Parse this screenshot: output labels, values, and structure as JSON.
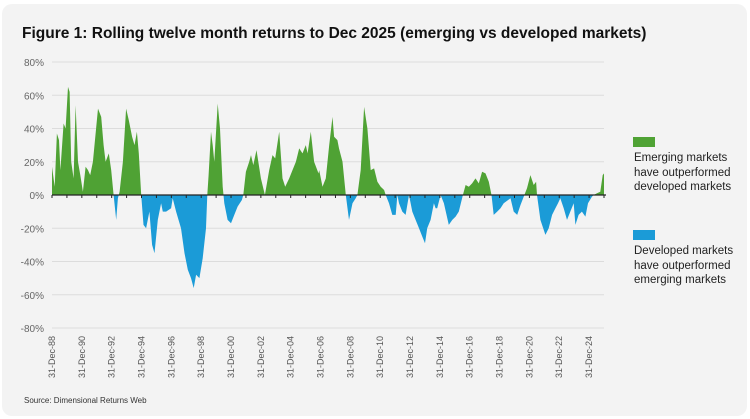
{
  "chart_data": {
    "type": "area",
    "title": "Figure 1: Rolling twelve month returns to Dec 2025 (emerging vs developed markets)",
    "xlabel": "",
    "ylabel": "",
    "ylim": [
      -80,
      80
    ],
    "xlim": [
      1988.95,
      2025.95
    ],
    "y_ticks": [
      "80%",
      "60%",
      "40%",
      "20%",
      "0%",
      "-20%",
      "-40%",
      "-60%",
      "-80%"
    ],
    "y_tick_values": [
      80,
      60,
      40,
      20,
      0,
      -20,
      -40,
      -60,
      -80
    ],
    "x_ticks": [
      "31-Dec-88",
      "31-Dec-90",
      "31-Dec-92",
      "31-Dec-94",
      "31-Dec-96",
      "31-Dec-98",
      "31-Dec-00",
      "31-Dec-02",
      "31-Dec-04",
      "31-Dec-06",
      "31-Dec-08",
      "31-Dec-10",
      "31-Dec-12",
      "31-Dec-14",
      "31-Dec-16",
      "31-Dec-18",
      "31-Dec-20",
      "31-Dec-22",
      "31-Dec-24"
    ],
    "grid": true,
    "legend_position": "right",
    "colors": {
      "positive": "#4fa234",
      "negative": "#1b9bd7"
    },
    "legend": [
      {
        "label": "Emerging markets have outperformed developed markets",
        "color": "#4fa234"
      },
      {
        "label": "Developed markets have outperformed emerging markets",
        "color": "#1b9bd7"
      }
    ],
    "x_unit": "year (decimal)",
    "points": [
      [
        1988.95,
        17
      ],
      [
        1989.13,
        5
      ],
      [
        1989.28,
        37
      ],
      [
        1989.42,
        33
      ],
      [
        1989.51,
        15
      ],
      [
        1989.73,
        43
      ],
      [
        1989.86,
        40
      ],
      [
        1990.02,
        65
      ],
      [
        1990.13,
        62
      ],
      [
        1990.24,
        20
      ],
      [
        1990.4,
        10
      ],
      [
        1990.53,
        54
      ],
      [
        1990.69,
        20
      ],
      [
        1990.85,
        12
      ],
      [
        1991.02,
        2
      ],
      [
        1991.2,
        17
      ],
      [
        1991.36,
        15
      ],
      [
        1991.51,
        12
      ],
      [
        1991.69,
        20
      ],
      [
        1992.03,
        52
      ],
      [
        1992.25,
        47
      ],
      [
        1992.41,
        30
      ],
      [
        1992.54,
        20
      ],
      [
        1992.76,
        25
      ],
      [
        1992.92,
        15
      ],
      [
        1993.08,
        0
      ],
      [
        1993.25,
        -15
      ],
      [
        1993.37,
        -2
      ],
      [
        1993.48,
        2
      ],
      [
        1993.7,
        20
      ],
      [
        1993.92,
        52
      ],
      [
        1994.1,
        45
      ],
      [
        1994.32,
        35
      ],
      [
        1994.48,
        30
      ],
      [
        1994.64,
        38
      ],
      [
        1994.77,
        25
      ],
      [
        1994.93,
        0
      ],
      [
        1995.08,
        -18
      ],
      [
        1995.26,
        -20
      ],
      [
        1995.48,
        -10
      ],
      [
        1995.66,
        -30
      ],
      [
        1995.82,
        -35
      ],
      [
        1996.04,
        -15
      ],
      [
        1996.26,
        -5
      ],
      [
        1996.38,
        -10
      ],
      [
        1996.6,
        -10
      ],
      [
        1996.93,
        -8
      ],
      [
        1997.04,
        -2
      ],
      [
        1997.27,
        -10
      ],
      [
        1997.6,
        -20
      ],
      [
        1997.83,
        -35
      ],
      [
        1998.05,
        -45
      ],
      [
        1998.27,
        -50
      ],
      [
        1998.45,
        -56
      ],
      [
        1998.61,
        -48
      ],
      [
        1998.83,
        -50
      ],
      [
        1999.05,
        -38
      ],
      [
        1999.27,
        -20
      ],
      [
        1999.36,
        0
      ],
      [
        1999.45,
        12
      ],
      [
        1999.61,
        38
      ],
      [
        1999.72,
        30
      ],
      [
        1999.83,
        20
      ],
      [
        2000.06,
        55
      ],
      [
        2000.21,
        40
      ],
      [
        2000.39,
        5
      ],
      [
        2000.5,
        -5
      ],
      [
        2000.72,
        -15
      ],
      [
        2000.95,
        -17
      ],
      [
        2001.17,
        -12
      ],
      [
        2001.39,
        -7
      ],
      [
        2001.68,
        -3
      ],
      [
        2001.77,
        0
      ],
      [
        2001.95,
        14
      ],
      [
        2002.17,
        20
      ],
      [
        2002.29,
        24
      ],
      [
        2002.44,
        18
      ],
      [
        2002.66,
        27
      ],
      [
        2002.95,
        10
      ],
      [
        2003.22,
        0
      ],
      [
        2003.51,
        15
      ],
      [
        2003.73,
        24
      ],
      [
        2003.91,
        22
      ],
      [
        2004.18,
        38
      ],
      [
        2004.4,
        10
      ],
      [
        2004.58,
        5
      ],
      [
        2004.85,
        10
      ],
      [
        2005.07,
        15
      ],
      [
        2005.3,
        20
      ],
      [
        2005.52,
        28
      ],
      [
        2005.74,
        25
      ],
      [
        2005.96,
        30
      ],
      [
        2006.08,
        25
      ],
      [
        2006.3,
        38
      ],
      [
        2006.52,
        20
      ],
      [
        2006.81,
        13
      ],
      [
        2006.86,
        15
      ],
      [
        2007.08,
        5
      ],
      [
        2007.3,
        10
      ],
      [
        2007.53,
        30
      ],
      [
        2007.75,
        47
      ],
      [
        2007.86,
        35
      ],
      [
        2008.08,
        33
      ],
      [
        2008.19,
        28
      ],
      [
        2008.42,
        20
      ],
      [
        2008.64,
        0
      ],
      [
        2008.86,
        -15
      ],
      [
        2009.09,
        -5
      ],
      [
        2009.31,
        -2
      ],
      [
        2009.42,
        0
      ],
      [
        2009.64,
        15
      ],
      [
        2009.87,
        53
      ],
      [
        2010.09,
        40
      ],
      [
        2010.31,
        15
      ],
      [
        2010.54,
        16
      ],
      [
        2010.76,
        8
      ],
      [
        2010.98,
        5
      ],
      [
        2011.21,
        3
      ],
      [
        2011.32,
        0
      ],
      [
        2011.54,
        -5
      ],
      [
        2011.76,
        -12
      ],
      [
        2011.99,
        -12
      ],
      [
        2012.1,
        0
      ],
      [
        2012.21,
        -5
      ],
      [
        2012.43,
        -10
      ],
      [
        2012.65,
        -12
      ],
      [
        2012.88,
        0
      ],
      [
        2013.1,
        -10
      ],
      [
        2013.32,
        -15
      ],
      [
        2013.55,
        -20
      ],
      [
        2013.77,
        -25
      ],
      [
        2013.95,
        -29
      ],
      [
        2014.1,
        -20
      ],
      [
        2014.33,
        -15
      ],
      [
        2014.55,
        -5
      ],
      [
        2014.66,
        -8
      ],
      [
        2014.77,
        -8
      ],
      [
        2015.0,
        0
      ],
      [
        2015.22,
        -5
      ],
      [
        2015.55,
        -18
      ],
      [
        2015.78,
        -15
      ],
      [
        2016.0,
        -13
      ],
      [
        2016.22,
        -10
      ],
      [
        2016.49,
        0
      ],
      [
        2016.67,
        6
      ],
      [
        2016.89,
        5
      ],
      [
        2017.11,
        7
      ],
      [
        2017.34,
        10
      ],
      [
        2017.56,
        7
      ],
      [
        2017.78,
        14
      ],
      [
        2018.01,
        13
      ],
      [
        2018.23,
        8
      ],
      [
        2018.41,
        0
      ],
      [
        2018.56,
        -12
      ],
      [
        2018.79,
        -10
      ],
      [
        2019.01,
        -8
      ],
      [
        2019.23,
        -5
      ],
      [
        2019.68,
        -2
      ],
      [
        2019.9,
        -10
      ],
      [
        2020.13,
        -12
      ],
      [
        2020.35,
        -6
      ],
      [
        2020.57,
        -1
      ],
      [
        2020.79,
        4
      ],
      [
        2021.02,
        12
      ],
      [
        2021.24,
        6
      ],
      [
        2021.4,
        8
      ],
      [
        2021.46,
        0
      ],
      [
        2021.69,
        -15
      ],
      [
        2022.02,
        -24
      ],
      [
        2022.24,
        -20
      ],
      [
        2022.47,
        -12
      ],
      [
        2022.69,
        -8
      ],
      [
        2022.87,
        -5
      ],
      [
        2023.02,
        -2
      ],
      [
        2023.25,
        -8
      ],
      [
        2023.47,
        -15
      ],
      [
        2023.69,
        -10
      ],
      [
        2023.92,
        -5
      ],
      [
        2024.03,
        -18
      ],
      [
        2024.25,
        -12
      ],
      [
        2024.47,
        -10
      ],
      [
        2024.7,
        -13
      ],
      [
        2024.88,
        -5
      ],
      [
        2025.14,
        -1
      ],
      [
        2025.25,
        0
      ],
      [
        2025.48,
        1
      ],
      [
        2025.7,
        2
      ],
      [
        2025.86,
        12
      ],
      [
        2025.95,
        13
      ]
    ]
  },
  "source": "Source: Dimensional Returns Web"
}
